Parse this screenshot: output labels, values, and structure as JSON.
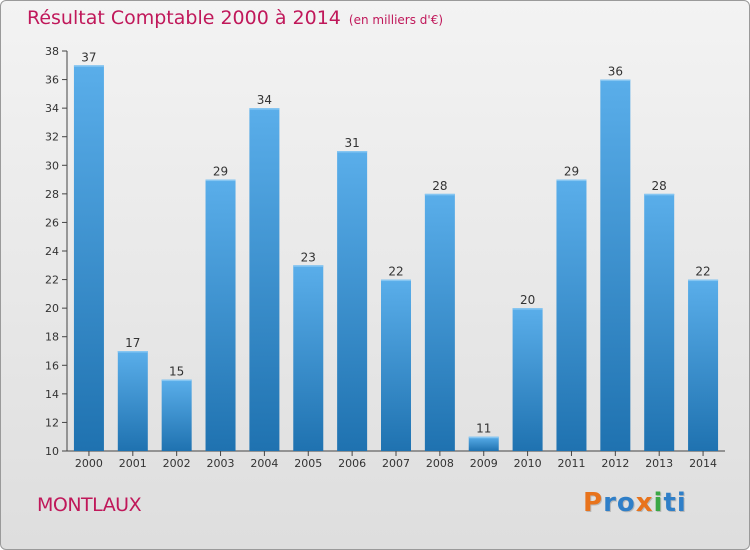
{
  "header": {
    "title": "Résultat Comptable 2000 à 2014",
    "subtitle": "(en milliers d'€)"
  },
  "footer": {
    "city": "MONTLAUX",
    "logo_text": "Proxiti"
  },
  "colors": {
    "title": "#c0185a",
    "bar_top": "#5aaeea",
    "bar_bottom": "#1f72b0",
    "logo_letters": [
      "#e8731c",
      "#2f7fc8",
      "#2f7fc8",
      "#e8731c",
      "#3aa845",
      "#2f7fc8",
      "#2f7fc8"
    ]
  },
  "chart_data": {
    "type": "bar",
    "title": "Résultat Comptable 2000 à 2014",
    "subtitle": "(en milliers d'€)",
    "xlabel": "",
    "ylabel": "",
    "categories": [
      "2000",
      "2001",
      "2002",
      "2003",
      "2004",
      "2005",
      "2006",
      "2007",
      "2008",
      "2009",
      "2010",
      "2011",
      "2012",
      "2013",
      "2014"
    ],
    "values": [
      37,
      17,
      15,
      29,
      34,
      23,
      31,
      22,
      28,
      11,
      20,
      29,
      36,
      28,
      22
    ],
    "ylim": [
      10,
      38
    ],
    "yticks": [
      10,
      12,
      14,
      16,
      18,
      20,
      22,
      24,
      26,
      28,
      30,
      32,
      34,
      36,
      38
    ],
    "grid": false,
    "legend": "none",
    "data_labels": true
  }
}
